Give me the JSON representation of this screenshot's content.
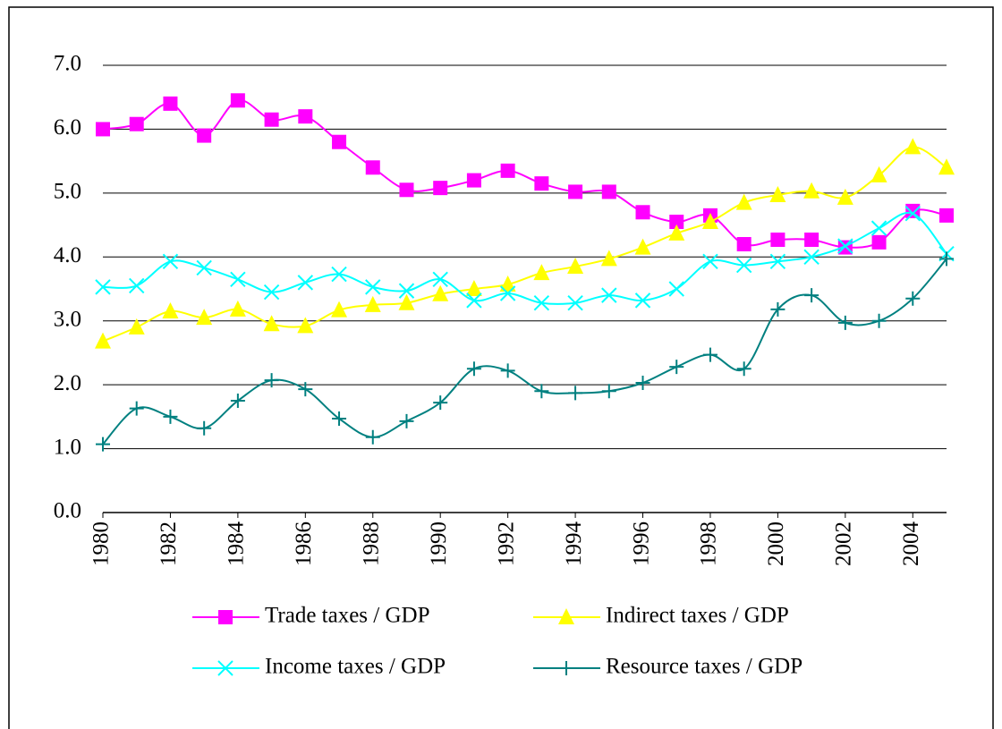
{
  "chart_data": {
    "type": "line",
    "x": [
      1980,
      1981,
      1982,
      1983,
      1984,
      1985,
      1986,
      1987,
      1988,
      1989,
      1990,
      1991,
      1992,
      1993,
      1994,
      1995,
      1996,
      1997,
      1998,
      1999,
      2000,
      2001,
      2002,
      2003,
      2004,
      2005
    ],
    "series": [
      {
        "name": "Trade taxes / GDP",
        "color": "#ff00ff",
        "marker": "square",
        "values": [
          6.0,
          6.08,
          6.4,
          5.9,
          6.45,
          6.15,
          6.2,
          5.8,
          5.4,
          5.05,
          5.08,
          5.2,
          5.35,
          5.15,
          5.02,
          5.02,
          4.7,
          4.55,
          4.65,
          4.2,
          4.27,
          4.27,
          4.15,
          4.23,
          4.72,
          4.65
        ]
      },
      {
        "name": "Indirect taxes / GDP",
        "color": "#ffff00",
        "marker": "triangle",
        "values": [
          2.68,
          2.9,
          3.15,
          3.05,
          3.18,
          2.95,
          2.92,
          3.17,
          3.25,
          3.28,
          3.42,
          3.5,
          3.57,
          3.75,
          3.85,
          3.97,
          4.15,
          4.37,
          4.55,
          4.85,
          4.97,
          5.03,
          4.93,
          5.28,
          5.72,
          5.4
        ]
      },
      {
        "name": "Income taxes / GDP",
        "color": "#00ffff",
        "marker": "x",
        "values": [
          3.53,
          3.55,
          3.93,
          3.83,
          3.65,
          3.45,
          3.6,
          3.73,
          3.53,
          3.47,
          3.65,
          3.32,
          3.43,
          3.28,
          3.28,
          3.4,
          3.32,
          3.5,
          3.93,
          3.87,
          3.93,
          4.0,
          4.17,
          4.45,
          4.68,
          4.05
        ]
      },
      {
        "name": "Resource taxes / GDP",
        "color": "#008080",
        "marker": "plus",
        "values": [
          1.07,
          1.63,
          1.5,
          1.32,
          1.75,
          2.07,
          1.93,
          1.47,
          1.18,
          1.43,
          1.72,
          2.25,
          2.22,
          1.9,
          1.87,
          1.9,
          2.03,
          2.28,
          2.47,
          2.25,
          3.18,
          3.4,
          2.97,
          3.0,
          3.35,
          3.97
        ]
      }
    ],
    "xlim": [
      1980,
      2005
    ],
    "xticks": [
      1980,
      1982,
      1984,
      1986,
      1988,
      1990,
      1992,
      1994,
      1996,
      1998,
      2000,
      2002,
      2004
    ],
    "ylim": [
      0,
      7
    ],
    "yticks": [
      {
        "value": 0,
        "label": "0.0"
      },
      {
        "value": 1,
        "label": "1.0"
      },
      {
        "value": 2,
        "label": "2.0"
      },
      {
        "value": 3,
        "label": "3.0"
      },
      {
        "value": 4,
        "label": "4.0"
      },
      {
        "value": 5,
        "label": "5.0"
      },
      {
        "value": 6,
        "label": "6.0"
      },
      {
        "value": 7,
        "label": "7.0"
      }
    ],
    "grid": true,
    "smooth": true,
    "legend": "bottom"
  }
}
